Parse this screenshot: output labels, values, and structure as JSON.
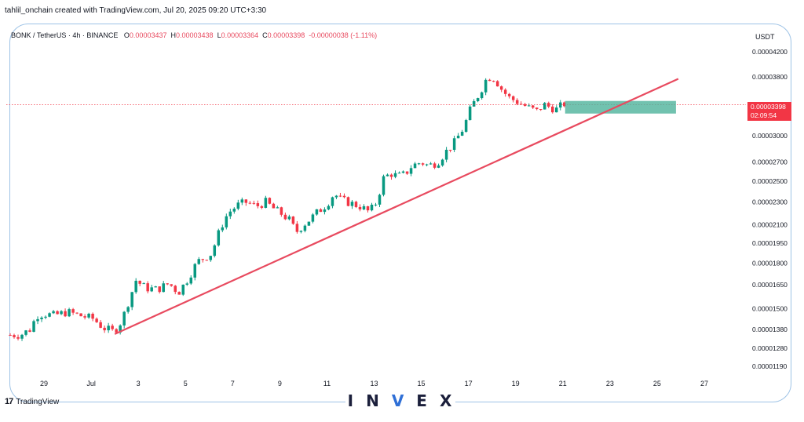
{
  "credit": "tahlil_onchain created with TradingView.com, Jul 20, 2025 09:20 UTC+3:30",
  "legend": {
    "symbol": "BONK / TetherUS · 4h · BINANCE",
    "o_label": "O",
    "o_value": "0.00003437",
    "h_label": "H",
    "h_value": "0.00003438",
    "l_label": "L",
    "l_value": "0.00003364",
    "c_label": "C",
    "c_value": "0.00003398",
    "change": "-0.00000038 (-1.11%)"
  },
  "currency": "USDT",
  "current_price": {
    "value": "0.00003398",
    "countdown": "02:09:54"
  },
  "branding": {
    "tv_label": "TradingView",
    "tv_mark": "17",
    "invex_letters": [
      "I",
      "N",
      "V",
      "E",
      "X"
    ]
  },
  "colors": {
    "up": "#089981",
    "down": "#f23645",
    "trendline": "#e84a5f",
    "zone": "#4db39b",
    "price_line": "#f23645"
  },
  "chart_data": {
    "type": "candlestick",
    "scale": "log",
    "title": "",
    "yticks": [
      "0.00004200",
      "0.00003800",
      "0.00003000",
      "0.00002700",
      "0.00002500",
      "0.00002300",
      "0.00002100",
      "0.00001950",
      "0.00001800",
      "0.00001650",
      "0.00001500",
      "0.00001380",
      "0.00001280",
      "0.00001190"
    ],
    "ytick_values": [
      4.2e-05,
      3.8e-05,
      3e-05,
      2.7e-05,
      2.5e-05,
      2.3e-05,
      2.1e-05,
      1.95e-05,
      1.8e-05,
      1.65e-05,
      1.5e-05,
      1.38e-05,
      1.28e-05,
      1.19e-05
    ],
    "ylim": [
      1.15e-05,
      4.35e-05
    ],
    "xticks": [
      "29",
      "Jul",
      "3",
      "5",
      "7",
      "9",
      "11",
      "13",
      "15",
      "17",
      "19",
      "21",
      "23",
      "25",
      "27"
    ],
    "xtick_days": [
      -2,
      0,
      2,
      4,
      6,
      8,
      10,
      12,
      14,
      16,
      18,
      20,
      22,
      24,
      26
    ],
    "xlim_days": [
      -3.6,
      27.6
    ],
    "close_path": [
      [
        -3.6,
        1.35e-05
      ],
      [
        -3.0,
        1.35e-05
      ],
      [
        -2.6,
        1.38e-05
      ],
      [
        -2.3,
        1.46e-05
      ],
      [
        -2.0,
        1.47e-05
      ],
      [
        -1.6,
        1.46e-05
      ],
      [
        -1.0,
        1.48e-05
      ],
      [
        -0.5,
        1.46e-05
      ],
      [
        -0.2,
        1.45e-05
      ],
      [
        0.1,
        1.44e-05
      ],
      [
        0.5,
        1.39e-05
      ],
      [
        0.9,
        1.37e-05
      ],
      [
        1.1,
        1.39e-05
      ],
      [
        1.3,
        1.43e-05
      ],
      [
        1.6,
        1.55e-05
      ],
      [
        1.9,
        1.68e-05
      ],
      [
        2.3,
        1.63e-05
      ],
      [
        2.8,
        1.62e-05
      ],
      [
        3.3,
        1.66e-05
      ],
      [
        3.7,
        1.6e-05
      ],
      [
        4.1,
        1.69e-05
      ],
      [
        4.5,
        1.81e-05
      ],
      [
        4.8,
        1.84e-05
      ],
      [
        5.1,
        1.87e-05
      ],
      [
        5.5,
        2.08e-05
      ],
      [
        5.8,
        2.2e-05
      ],
      [
        6.2,
        2.27e-05
      ],
      [
        6.6,
        2.3e-05
      ],
      [
        7.0,
        2.26e-05
      ],
      [
        7.4,
        2.3e-05
      ],
      [
        7.8,
        2.23e-05
      ],
      [
        8.1,
        2.19e-05
      ],
      [
        8.4,
        2.14e-05
      ],
      [
        8.7,
        2.04e-05
      ],
      [
        9.0,
        2.1e-05
      ],
      [
        9.3,
        2.15e-05
      ],
      [
        9.6,
        2.21e-05
      ],
      [
        10.0,
        2.28e-05
      ],
      [
        10.3,
        2.38e-05
      ],
      [
        10.6,
        2.32e-05
      ],
      [
        11.0,
        2.29e-05
      ],
      [
        11.4,
        2.26e-05
      ],
      [
        11.8,
        2.21e-05
      ],
      [
        12.1,
        2.3e-05
      ],
      [
        12.4,
        2.53e-05
      ],
      [
        12.7,
        2.58e-05
      ],
      [
        13.0,
        2.55e-05
      ],
      [
        13.3,
        2.57e-05
      ],
      [
        13.6,
        2.66e-05
      ],
      [
        14.0,
        2.7e-05
      ],
      [
        14.3,
        2.66e-05
      ],
      [
        14.7,
        2.7e-05
      ],
      [
        15.0,
        2.8e-05
      ],
      [
        15.4,
        2.92e-05
      ],
      [
        15.8,
        3.1e-05
      ],
      [
        16.1,
        3.35e-05
      ],
      [
        16.5,
        3.58e-05
      ],
      [
        16.8,
        3.8e-05
      ],
      [
        17.1,
        3.78e-05
      ],
      [
        17.4,
        3.62e-05
      ],
      [
        17.7,
        3.5e-05
      ],
      [
        18.0,
        3.45e-05
      ],
      [
        18.3,
        3.4e-05
      ],
      [
        18.6,
        3.35e-05
      ],
      [
        18.9,
        3.31e-05
      ],
      [
        19.2,
        3.4e-05
      ],
      [
        19.5,
        3.36e-05
      ],
      [
        19.8,
        3.33e-05
      ],
      [
        20.0,
        3.42e-05
      ],
      [
        20.15,
        3.4e-05
      ]
    ],
    "trendline": {
      "x1": 1.0,
      "y1": 1.355e-05,
      "x2": 24.9,
      "y2": 3.77e-05
    },
    "zone": {
      "x1": 20.1,
      "x2": 24.8,
      "y_low": 3.28e-05,
      "y_high": 3.45e-05
    },
    "price_line": 3.398e-05
  }
}
